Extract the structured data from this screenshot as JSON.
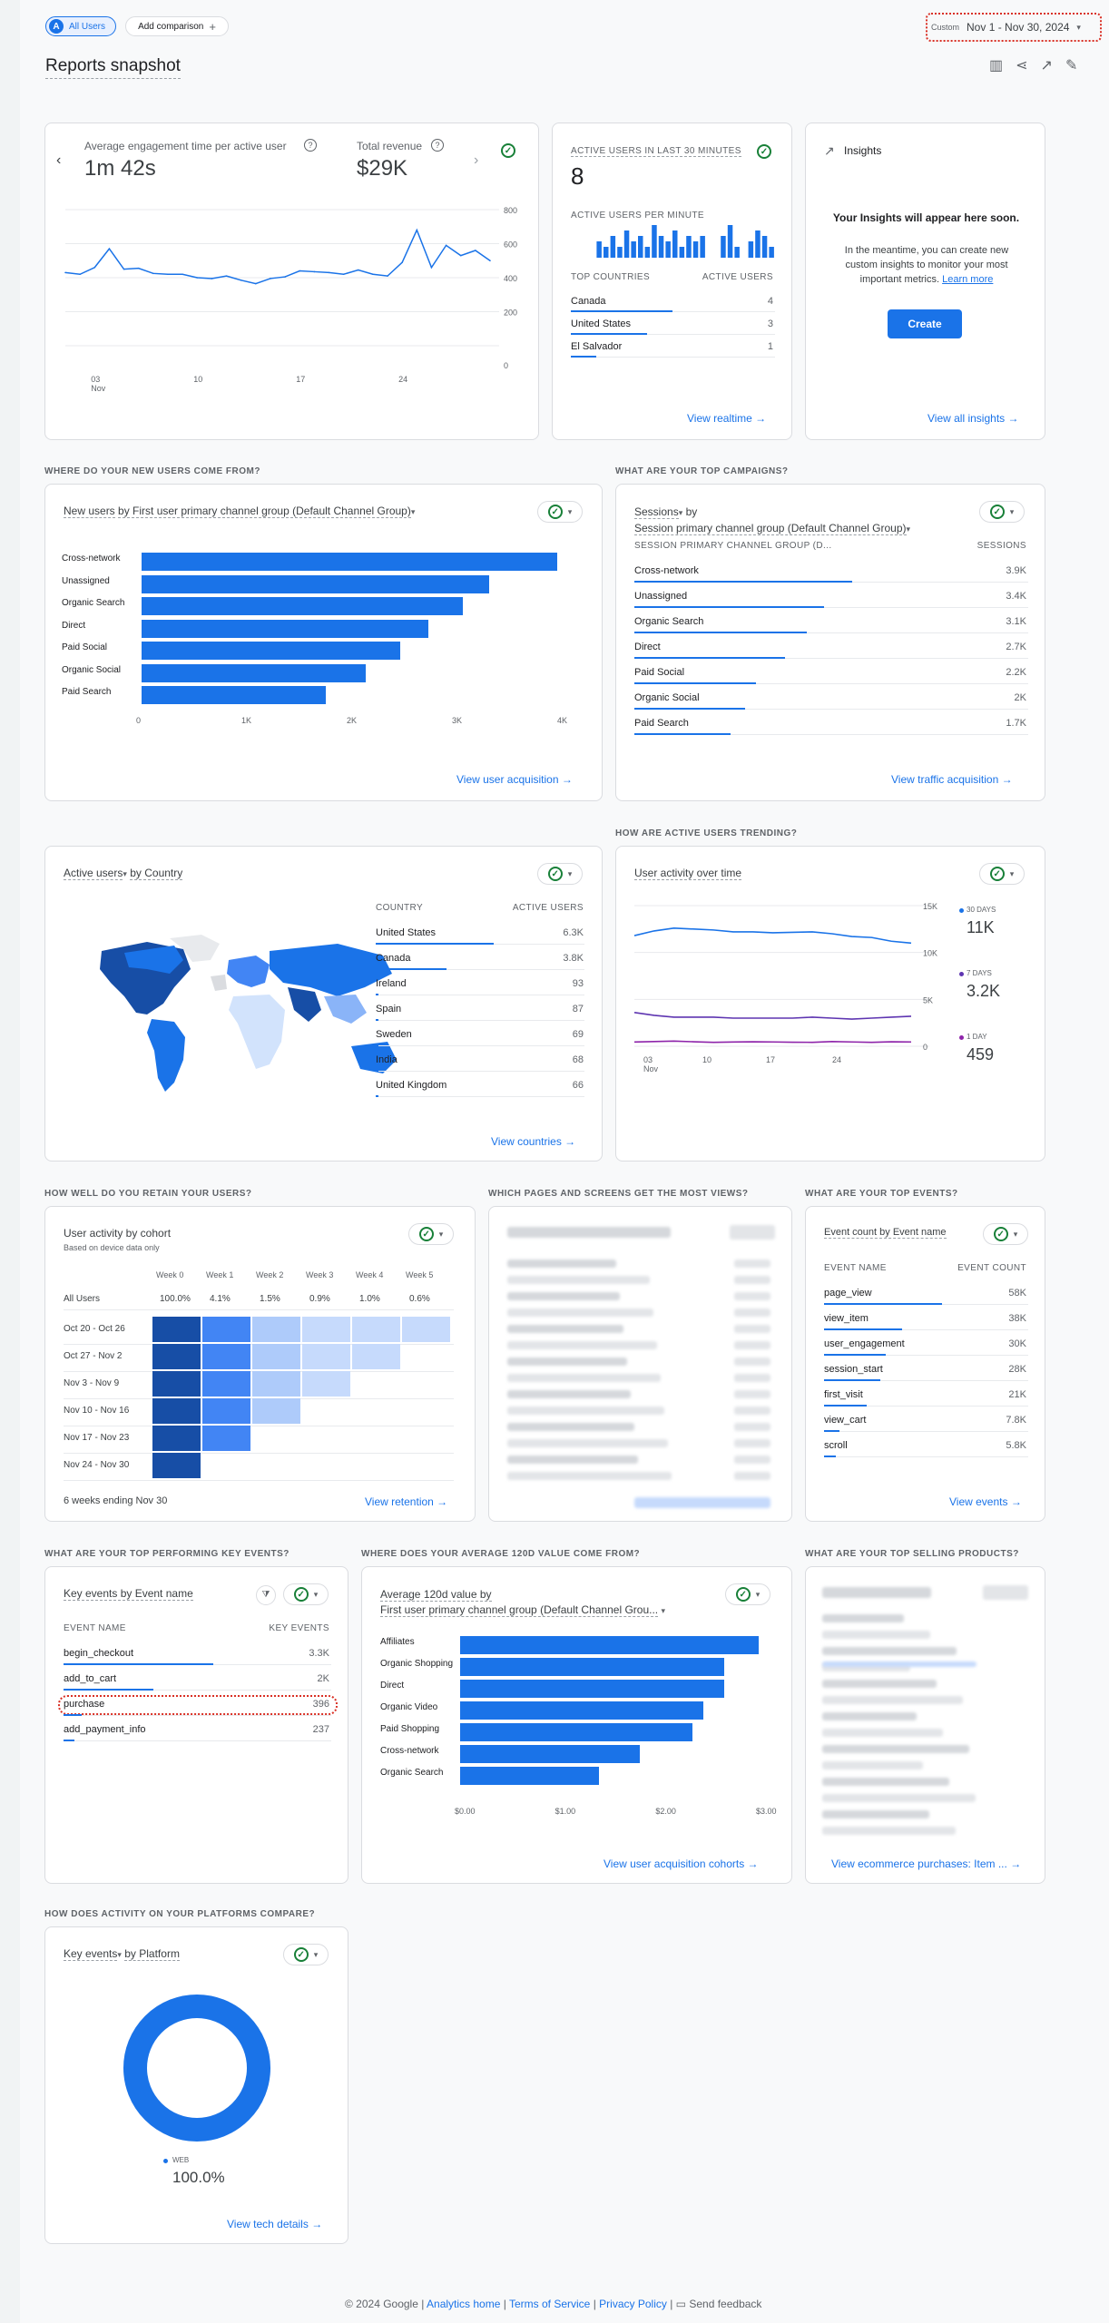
{
  "header": {
    "all_users": "All Users",
    "all_users_badge": "A",
    "add_comparison": "Add comparison",
    "date_label": "Custom",
    "date_range": "Nov 1 - Nov 30, 2024",
    "title": "Reports snapshot"
  },
  "overview": {
    "metric1_label": "Average engagement time per active user",
    "metric1_value": "1m 42s",
    "metric2_label": "Total revenue",
    "metric2_value": "$29K",
    "y_ticks": [
      "800",
      "600",
      "400",
      "200",
      "0"
    ],
    "x_ticks": [
      "03",
      "10",
      "17",
      "24"
    ],
    "x_month": "Nov"
  },
  "realtime": {
    "title": "ACTIVE USERS IN LAST 30 MINUTES",
    "value": "8",
    "per_minute": "ACTIVE USERS PER MINUTE",
    "col1": "TOP COUNTRIES",
    "col2": "ACTIVE USERS",
    "rows": [
      {
        "name": "Canada",
        "value": "4"
      },
      {
        "name": "United States",
        "value": "3"
      },
      {
        "name": "El Salvador",
        "value": "1"
      }
    ],
    "link": "View realtime"
  },
  "insights": {
    "title": "Insights",
    "headline": "Your Insights will appear here soon.",
    "body": "In the meantime, you can create new custom insights to monitor your most important metrics.",
    "learn_more": "Learn more",
    "create": "Create",
    "link": "View all insights"
  },
  "sections": {
    "new_users": "WHERE DO YOUR NEW USERS COME FROM?",
    "campaigns": "WHAT ARE YOUR TOP CAMPAIGNS?",
    "trending": "HOW ARE ACTIVE USERS TRENDING?",
    "retain": "HOW WELL DO YOU RETAIN YOUR USERS?",
    "pages": "WHICH PAGES AND SCREENS GET THE MOST VIEWS?",
    "events": "WHAT ARE YOUR TOP EVENTS?",
    "key_events": "WHAT ARE YOUR TOP PERFORMING KEY EVENTS?",
    "avg_value": "WHERE DOES YOUR AVERAGE 120D VALUE COME FROM?",
    "products": "WHAT ARE YOUR TOP SELLING PRODUCTS?",
    "platforms": "HOW DOES ACTIVITY ON YOUR PLATFORMS COMPARE?"
  },
  "new_users": {
    "title_metric": "New users",
    "title_rest": "by First user primary channel group (Default Channel Group)",
    "link": "View user acquisition"
  },
  "campaigns": {
    "title_metric": "Sessions",
    "title_by": "by",
    "title_dim": "Session primary channel group (Default Channel Group)",
    "col1": "SESSION PRIMARY CHANNEL GROUP (D...",
    "col2": "SESSIONS",
    "rows": [
      {
        "name": "Cross-network",
        "value": "3.9K",
        "frac": 1.0
      },
      {
        "name": "Unassigned",
        "value": "3.4K",
        "frac": 0.87
      },
      {
        "name": "Organic Search",
        "value": "3.1K",
        "frac": 0.79
      },
      {
        "name": "Direct",
        "value": "2.7K",
        "frac": 0.69
      },
      {
        "name": "Paid Social",
        "value": "2.2K",
        "frac": 0.56
      },
      {
        "name": "Organic Social",
        "value": "2K",
        "frac": 0.51
      },
      {
        "name": "Paid Search",
        "value": "1.7K",
        "frac": 0.44
      }
    ],
    "link": "View traffic acquisition"
  },
  "countries": {
    "title_metric": "Active users",
    "title_rest": "by Country",
    "col1": "COUNTRY",
    "col2": "ACTIVE USERS",
    "rows": [
      {
        "name": "United States",
        "value": "6.3K",
        "frac": 1.0
      },
      {
        "name": "Canada",
        "value": "3.8K",
        "frac": 0.6
      },
      {
        "name": "Ireland",
        "value": "93",
        "frac": 0.015
      },
      {
        "name": "Spain",
        "value": "87",
        "frac": 0.014
      },
      {
        "name": "Sweden",
        "value": "69",
        "frac": 0.011
      },
      {
        "name": "India",
        "value": "68",
        "frac": 0.011
      },
      {
        "name": "United Kingdom",
        "value": "66",
        "frac": 0.01
      }
    ],
    "link": "View countries"
  },
  "trend": {
    "title": "User activity over time",
    "y_ticks": [
      "15K",
      "10K",
      "5K",
      "0"
    ],
    "x_ticks": [
      "03",
      "10",
      "17",
      "24"
    ],
    "x_month": "Nov",
    "legend": [
      {
        "label": "30 DAYS",
        "value": "11K",
        "color": "#1a73e8"
      },
      {
        "label": "7 DAYS",
        "value": "3.2K",
        "color": "#5e35b1"
      },
      {
        "label": "1 DAY",
        "value": "459",
        "color": "#8e24aa"
      }
    ]
  },
  "cohort": {
    "title": "User activity by cohort",
    "subtitle": "Based on device data only",
    "weeks": [
      "Week 0",
      "Week 1",
      "Week 2",
      "Week 3",
      "Week 4",
      "Week 5"
    ],
    "all_label": "All Users",
    "all_values": [
      "100.0%",
      "4.1%",
      "1.5%",
      "0.9%",
      "1.0%",
      "0.6%"
    ],
    "rows": [
      "Oct 20 - Oct 26",
      "Oct 27 - Nov 2",
      "Nov 3 - Nov 9",
      "Nov 10 - Nov 16",
      "Nov 17 - Nov 23",
      "Nov 24 - Nov 30"
    ],
    "footer": "6 weeks ending Nov 30",
    "link": "View retention"
  },
  "events": {
    "title": "Event count by Event name",
    "col1": "EVENT NAME",
    "col2": "EVENT COUNT",
    "rows": [
      {
        "name": "page_view",
        "value": "58K",
        "frac": 1.0
      },
      {
        "name": "view_item",
        "value": "38K",
        "frac": 0.66
      },
      {
        "name": "user_engagement",
        "value": "30K",
        "frac": 0.52
      },
      {
        "name": "session_start",
        "value": "28K",
        "frac": 0.48
      },
      {
        "name": "first_visit",
        "value": "21K",
        "frac": 0.36
      },
      {
        "name": "view_cart",
        "value": "7.8K",
        "frac": 0.13
      },
      {
        "name": "scroll",
        "value": "5.8K",
        "frac": 0.1
      }
    ],
    "link": "View events"
  },
  "key_events": {
    "title": "Key events by Event name",
    "col1": "EVENT NAME",
    "col2": "KEY EVENTS",
    "rows": [
      {
        "name": "begin_checkout",
        "value": "3.3K",
        "frac": 1.0
      },
      {
        "name": "add_to_cart",
        "value": "2K",
        "frac": 0.6
      },
      {
        "name": "purchase",
        "value": "396",
        "frac": 0.12
      },
      {
        "name": "add_payment_info",
        "value": "237",
        "frac": 0.07
      }
    ]
  },
  "avg_value": {
    "title_line1": "Average 120d value by",
    "title_line2": "First user primary channel group (Default Channel Grou...",
    "link": "View user acquisition cohorts"
  },
  "products": {
    "link": "View ecommerce purchases: Item ..."
  },
  "platforms": {
    "title_metric": "Key events",
    "title_rest": "by Platform",
    "legend_label": "WEB",
    "legend_value": "100.0%",
    "link": "View tech details"
  },
  "footer": {
    "copyright": "© 2024 Google |",
    "analytics_home": "Analytics home",
    "sep1": "|",
    "terms": "Terms of Service",
    "sep2": "|",
    "privacy": "Privacy Policy",
    "sep3": "|",
    "feedback": "Send feedback"
  },
  "colors": {
    "accent": "#1a73e8",
    "check": "#188038",
    "purple": "#5e35b1"
  },
  "chart_data": [
    {
      "type": "line",
      "title": "Average engagement time per active user",
      "x": [
        "Nov 1",
        "Nov 2",
        "Nov 3",
        "Nov 4",
        "Nov 5",
        "Nov 6",
        "Nov 7",
        "Nov 8",
        "Nov 9",
        "Nov 10",
        "Nov 11",
        "Nov 12",
        "Nov 13",
        "Nov 14",
        "Nov 15",
        "Nov 16",
        "Nov 17",
        "Nov 18",
        "Nov 19",
        "Nov 20",
        "Nov 21",
        "Nov 22",
        "Nov 23",
        "Nov 24",
        "Nov 25",
        "Nov 26",
        "Nov 27",
        "Nov 28",
        "Nov 29",
        "Nov 30"
      ],
      "series": [
        {
          "values": [
            430,
            420,
            460,
            570,
            450,
            455,
            425,
            420,
            420,
            400,
            395,
            410,
            385,
            365,
            395,
            405,
            440,
            435,
            430,
            420,
            445,
            420,
            410,
            490,
            680,
            460,
            590,
            530,
            560,
            500
          ]
        }
      ],
      "ylim": [
        0,
        800
      ],
      "yticks": [
        0,
        200,
        400,
        600,
        800
      ]
    },
    {
      "type": "bar",
      "title": "Active users per minute",
      "values": [
        0,
        0,
        0,
        0,
        3,
        2,
        4,
        2,
        5,
        3,
        4,
        2,
        6,
        4,
        3,
        5,
        2,
        4,
        3,
        4,
        0,
        0,
        4,
        6,
        2,
        0,
        3,
        5,
        4,
        2
      ],
      "xlabel": "",
      "ylabel": ""
    },
    {
      "type": "bar",
      "title": "New users by First user primary channel group (Default Channel Group)",
      "categories": [
        "Cross-network",
        "Unassigned",
        "Organic Search",
        "Direct",
        "Paid Social",
        "Organic Social",
        "Paid Search"
      ],
      "values": [
        3950,
        3300,
        3050,
        2720,
        2460,
        2130,
        1750
      ],
      "xlim": [
        0,
        4000
      ],
      "xticks": [
        "0",
        "1K",
        "2K",
        "3K",
        "4K"
      ]
    },
    {
      "type": "line",
      "title": "User activity over time",
      "x": [
        "Nov 1",
        "Nov 3",
        "Nov 5",
        "Nov 7",
        "Nov 9",
        "Nov 11",
        "Nov 13",
        "Nov 15",
        "Nov 17",
        "Nov 19",
        "Nov 21",
        "Nov 23",
        "Nov 25",
        "Nov 27",
        "Nov 30"
      ],
      "series": [
        {
          "name": "30 DAYS",
          "values": [
            11800,
            12300,
            12600,
            12500,
            12400,
            12200,
            12200,
            12100,
            12150,
            12200,
            12000,
            11700,
            11600,
            11200,
            11000
          ]
        },
        {
          "name": "7 DAYS",
          "values": [
            3600,
            3300,
            3100,
            3100,
            3100,
            3000,
            3000,
            3000,
            3000,
            3100,
            3000,
            2900,
            3000,
            3100,
            3200
          ]
        },
        {
          "name": "1 DAY",
          "values": [
            450,
            500,
            550,
            480,
            420,
            450,
            480,
            460,
            430,
            420,
            500,
            460,
            420,
            480,
            459
          ]
        }
      ],
      "ylim": [
        0,
        15000
      ],
      "yticks": [
        0,
        5000,
        10000,
        15000
      ]
    },
    {
      "type": "heatmap",
      "title": "User activity by cohort",
      "x": [
        "Week 0",
        "Week 1",
        "Week 2",
        "Week 3",
        "Week 4",
        "Week 5"
      ],
      "y": [
        "Oct 20 - Oct 26",
        "Oct 27 - Nov 2",
        "Nov 3 - Nov 9",
        "Nov 10 - Nov 16",
        "Nov 17 - Nov 23",
        "Nov 24 - Nov 30"
      ],
      "values": [
        [
          100,
          4.2,
          1.6,
          1.0,
          1.0,
          0.6
        ],
        [
          100,
          4.0,
          1.5,
          0.9,
          1.0,
          null
        ],
        [
          100,
          4.1,
          1.4,
          0.8,
          null,
          null
        ],
        [
          100,
          3.9,
          1.5,
          null,
          null,
          null
        ],
        [
          100,
          4.3,
          null,
          null,
          null,
          null
        ],
        [
          100,
          null,
          null,
          null,
          null,
          null
        ]
      ]
    },
    {
      "type": "bar",
      "title": "Average 120d value by First user primary channel group (Default Channel Group)",
      "categories": [
        "Affiliates",
        "Organic Shopping",
        "Direct",
        "Organic Video",
        "Paid Shopping",
        "Cross-network",
        "Organic Search"
      ],
      "values": [
        2.97,
        2.63,
        2.63,
        2.42,
        2.31,
        1.79,
        1.38
      ],
      "xlim": [
        0,
        3
      ],
      "xticks": [
        "$0.00",
        "$1.00",
        "$2.00",
        "$3.00"
      ]
    },
    {
      "type": "pie",
      "title": "Key events by Platform",
      "categories": [
        "WEB"
      ],
      "values": [
        100.0
      ]
    }
  ]
}
